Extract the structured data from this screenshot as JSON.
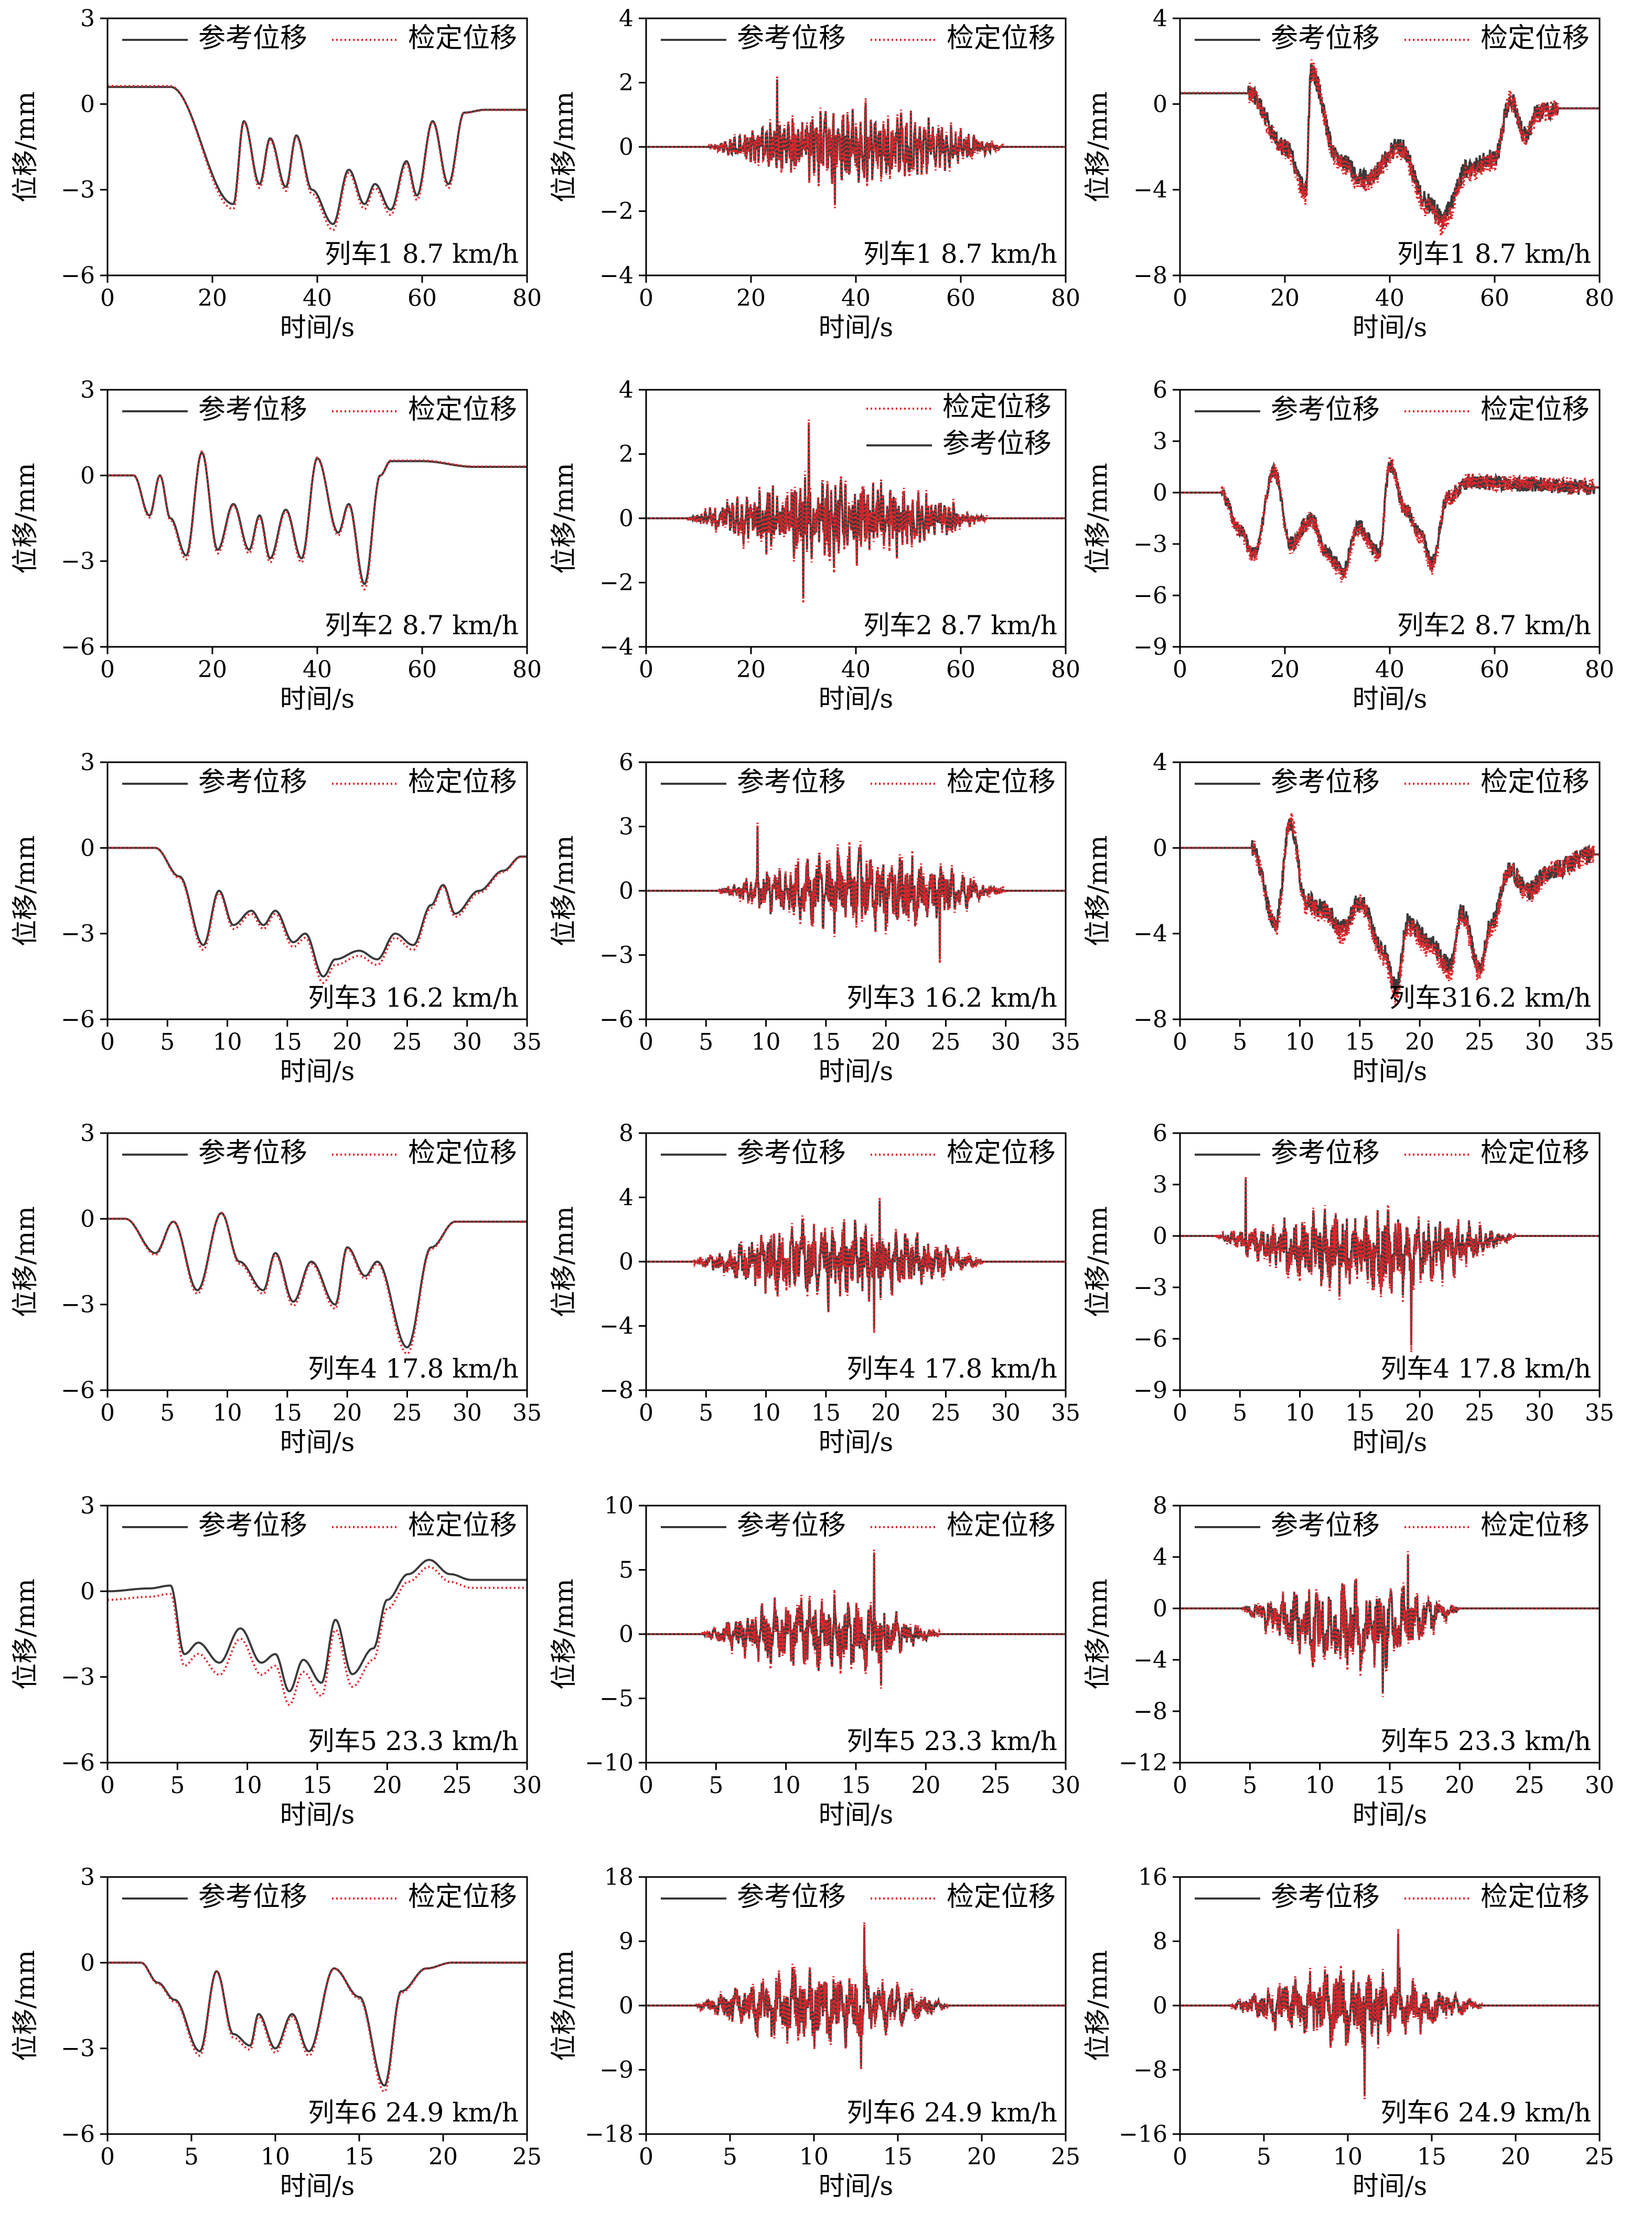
{
  "figure": {
    "xlabel": "时间/s",
    "ylabel": "位移/mm",
    "colors": {
      "reference": "#3a3a3a",
      "calibrated": "#e0262b",
      "axis": "#000000"
    },
    "labels": {
      "reference": "参考位移",
      "calibrated": "检定位移"
    }
  },
  "chart_data": [
    {
      "type": "line",
      "row": 1,
      "col": 1,
      "annotation": "列车1 8.7 km/h",
      "xlim": [
        0,
        80
      ],
      "xticks": [
        0,
        20,
        40,
        60,
        80
      ],
      "ylim": [
        -6,
        3
      ],
      "yticks": [
        -6,
        -3,
        0,
        3
      ],
      "legend": "top",
      "legend_order": [
        "参考位移",
        "检定位移"
      ],
      "style": "smooth",
      "events": [
        [
          12,
          0.6
        ],
        [
          24,
          -3.5
        ],
        [
          26,
          -0.6
        ],
        [
          29,
          -2.8
        ],
        [
          31,
          -1.2
        ],
        [
          34,
          -2.9
        ],
        [
          36,
          -1.1
        ],
        [
          39,
          -3.0
        ],
        [
          43,
          -4.2
        ],
        [
          46,
          -2.3
        ],
        [
          49,
          -3.5
        ],
        [
          51,
          -2.8
        ],
        [
          54,
          -3.7
        ],
        [
          57,
          -2.0
        ],
        [
          59,
          -3.2
        ],
        [
          62,
          -0.6
        ],
        [
          65,
          -2.8
        ],
        [
          68,
          -0.3
        ],
        [
          72,
          -0.2
        ]
      ]
    },
    {
      "type": "line",
      "row": 1,
      "col": 2,
      "annotation": "列车1 8.7 km/h",
      "xlim": [
        0,
        80
      ],
      "xticks": [
        0,
        20,
        40,
        60,
        80
      ],
      "ylim": [
        -4,
        4
      ],
      "yticks": [
        -4,
        -2,
        0,
        2,
        4
      ],
      "legend": "top",
      "legend_order": [
        "参考位移",
        "检定位移"
      ],
      "style": "oscillation",
      "span": [
        12,
        68
      ],
      "peak": [
        25,
        2.1
      ],
      "trough": [
        36,
        -1.8
      ],
      "amp": 1.2
    },
    {
      "type": "line",
      "row": 1,
      "col": 3,
      "annotation": "列车1 8.7 km/h",
      "xlim": [
        0,
        80
      ],
      "xticks": [
        0,
        20,
        40,
        60,
        80
      ],
      "ylim": [
        -8,
        4
      ],
      "yticks": [
        -8,
        -4,
        0,
        4
      ],
      "legend": "top",
      "legend_order": [
        "参考位移",
        "检定位移"
      ],
      "style": "noisy",
      "events": [
        [
          13,
          0.5
        ],
        [
          20,
          -2.0
        ],
        [
          24,
          -4.0
        ],
        [
          25,
          1.5
        ],
        [
          30,
          -2.5
        ],
        [
          35,
          -3.5
        ],
        [
          42,
          -2.0
        ],
        [
          47,
          -4.5
        ],
        [
          50,
          -5.3
        ],
        [
          55,
          -3.0
        ],
        [
          60,
          -2.5
        ],
        [
          63,
          0.2
        ],
        [
          66,
          -1.5
        ],
        [
          68,
          -0.4
        ],
        [
          72,
          -0.2
        ]
      ]
    },
    {
      "type": "line",
      "row": 2,
      "col": 1,
      "annotation": "列车2 8.7 km/h",
      "xlim": [
        0,
        80
      ],
      "xticks": [
        0,
        20,
        40,
        60,
        80
      ],
      "ylim": [
        -6,
        3
      ],
      "yticks": [
        -6,
        -3,
        0,
        3
      ],
      "legend": "top",
      "legend_order": [
        "参考位移",
        "检定位移"
      ],
      "style": "smooth",
      "events": [
        [
          5,
          0
        ],
        [
          8,
          -1.4
        ],
        [
          10,
          0
        ],
        [
          12,
          -1.5
        ],
        [
          15,
          -2.8
        ],
        [
          18,
          0.8
        ],
        [
          21,
          -2.6
        ],
        [
          24,
          -1.0
        ],
        [
          27,
          -2.6
        ],
        [
          29,
          -1.4
        ],
        [
          31,
          -2.9
        ],
        [
          34,
          -1.2
        ],
        [
          37,
          -2.9
        ],
        [
          40,
          0.6
        ],
        [
          44,
          -2.0
        ],
        [
          46,
          -1.0
        ],
        [
          49,
          -3.8
        ],
        [
          52,
          0.0
        ],
        [
          54,
          0.5
        ],
        [
          60,
          0.5
        ],
        [
          70,
          0.3
        ],
        [
          78,
          0.3
        ]
      ]
    },
    {
      "type": "line",
      "row": 2,
      "col": 2,
      "annotation": "列车2 8.7 km/h",
      "xlim": [
        0,
        80
      ],
      "xticks": [
        0,
        20,
        40,
        60,
        80
      ],
      "ylim": [
        -4,
        4
      ],
      "yticks": [
        -4,
        -2,
        0,
        2,
        4
      ],
      "legend": "top",
      "legend_order": [
        "检定位移",
        "参考位移"
      ],
      "legend_stacked": true,
      "style": "oscillation",
      "span": [
        8,
        65
      ],
      "peak": [
        31,
        2.9
      ],
      "trough": [
        30,
        -2.5
      ],
      "amp": 1.3
    },
    {
      "type": "line",
      "row": 2,
      "col": 3,
      "annotation": "列车2 8.7 km/h",
      "xlim": [
        0,
        80
      ],
      "xticks": [
        0,
        20,
        40,
        60,
        80
      ],
      "ylim": [
        -9,
        6
      ],
      "yticks": [
        -9,
        -6,
        -3,
        0,
        3,
        6
      ],
      "legend": "top",
      "legend_order": [
        "参考位移",
        "检定位移"
      ],
      "style": "noisy",
      "events": [
        [
          8,
          0
        ],
        [
          11,
          -2.0
        ],
        [
          14,
          -3.5
        ],
        [
          18,
          1.2
        ],
        [
          21,
          -3.0
        ],
        [
          25,
          -1.5
        ],
        [
          28,
          -3.5
        ],
        [
          31,
          -4.5
        ],
        [
          34,
          -2.0
        ],
        [
          38,
          -3.5
        ],
        [
          40,
          1.6
        ],
        [
          43,
          -1.0
        ],
        [
          46,
          -2.5
        ],
        [
          48,
          -4.1
        ],
        [
          51,
          -0.3
        ],
        [
          55,
          0.6
        ],
        [
          65,
          0.5
        ],
        [
          79,
          0.3
        ]
      ]
    },
    {
      "type": "line",
      "row": 3,
      "col": 1,
      "annotation": "列车3 16.2 km/h",
      "xlim": [
        0,
        35
      ],
      "xticks": [
        0,
        5,
        10,
        15,
        20,
        25,
        30,
        35
      ],
      "ylim": [
        -6,
        3
      ],
      "yticks": [
        -6,
        -3,
        0,
        3
      ],
      "legend": "top",
      "legend_order": [
        "参考位移",
        "检定位移"
      ],
      "style": "smooth",
      "events": [
        [
          4,
          0
        ],
        [
          6,
          -1.0
        ],
        [
          8,
          -3.4
        ],
        [
          9.3,
          -1.5
        ],
        [
          10.5,
          -2.7
        ],
        [
          12,
          -2.2
        ],
        [
          13,
          -2.7
        ],
        [
          14,
          -2.2
        ],
        [
          15.5,
          -3.3
        ],
        [
          16.5,
          -3.0
        ],
        [
          18,
          -4.5
        ],
        [
          19,
          -3.9
        ],
        [
          21,
          -3.6
        ],
        [
          22.5,
          -3.9
        ],
        [
          24,
          -3.0
        ],
        [
          25.5,
          -3.4
        ],
        [
          27,
          -2.0
        ],
        [
          28,
          -1.3
        ],
        [
          29,
          -2.3
        ],
        [
          31,
          -1.5
        ],
        [
          33,
          -0.8
        ],
        [
          34.5,
          -0.3
        ]
      ]
    },
    {
      "type": "line",
      "row": 3,
      "col": 2,
      "annotation": "列车3 16.2 km/h",
      "xlim": [
        0,
        35
      ],
      "xticks": [
        0,
        5,
        10,
        15,
        20,
        25,
        30,
        35
      ],
      "ylim": [
        -6,
        6
      ],
      "yticks": [
        -6,
        -3,
        0,
        3,
        6
      ],
      "legend": "top",
      "legend_order": [
        "参考位移",
        "检定位移"
      ],
      "style": "oscillation",
      "span": [
        6,
        30
      ],
      "peak": [
        9.3,
        3.0
      ],
      "trough": [
        24.5,
        -3.2
      ],
      "amp": 1.9
    },
    {
      "type": "line",
      "row": 3,
      "col": 3,
      "annotation": "列车316.2 km/h",
      "xlim": [
        0,
        35
      ],
      "xticks": [
        0,
        5,
        10,
        15,
        20,
        25,
        30,
        35
      ],
      "ylim": [
        -8,
        4
      ],
      "yticks": [
        -8,
        -4,
        0,
        4
      ],
      "legend": "top",
      "legend_order": [
        "参考位移",
        "检定位移"
      ],
      "style": "noisy",
      "events": [
        [
          6,
          0
        ],
        [
          8,
          -3.5
        ],
        [
          9.2,
          1.2
        ],
        [
          10.5,
          -2.5
        ],
        [
          12,
          -2.8
        ],
        [
          13.5,
          -3.8
        ],
        [
          15,
          -2.5
        ],
        [
          17,
          -4.8
        ],
        [
          18,
          -6.5
        ],
        [
          19,
          -3.5
        ],
        [
          21,
          -4.5
        ],
        [
          22.5,
          -5.5
        ],
        [
          23.5,
          -3.0
        ],
        [
          25,
          -5.5
        ],
        [
          26,
          -3.5
        ],
        [
          27.5,
          -1.0
        ],
        [
          29,
          -2.0
        ],
        [
          31,
          -1.0
        ],
        [
          34.5,
          -0.3
        ]
      ]
    },
    {
      "type": "line",
      "row": 4,
      "col": 1,
      "annotation": "列车4 17.8 km/h",
      "xlim": [
        0,
        35
      ],
      "xticks": [
        0,
        5,
        10,
        15,
        20,
        25,
        30,
        35
      ],
      "ylim": [
        -6,
        3
      ],
      "yticks": [
        -6,
        -3,
        0,
        3
      ],
      "legend": "top",
      "legend_order": [
        "参考位移",
        "检定位移"
      ],
      "style": "smooth",
      "events": [
        [
          1.5,
          0
        ],
        [
          4,
          -1.2
        ],
        [
          5.5,
          -0.1
        ],
        [
          7.5,
          -2.5
        ],
        [
          9.5,
          0.2
        ],
        [
          11,
          -1.5
        ],
        [
          13,
          -2.5
        ],
        [
          14,
          -1.2
        ],
        [
          15.5,
          -2.9
        ],
        [
          17,
          -1.5
        ],
        [
          19,
          -3.0
        ],
        [
          20,
          -1.0
        ],
        [
          21.5,
          -2.0
        ],
        [
          22.5,
          -1.5
        ],
        [
          25,
          -4.5
        ],
        [
          27,
          -1.0
        ],
        [
          29,
          -0.1
        ],
        [
          34.5,
          -0.1
        ]
      ]
    },
    {
      "type": "line",
      "row": 4,
      "col": 2,
      "annotation": "列车4 17.8 km/h",
      "xlim": [
        0,
        35
      ],
      "xticks": [
        0,
        5,
        10,
        15,
        20,
        25,
        30,
        35
      ],
      "ylim": [
        -8,
        8
      ],
      "yticks": [
        -8,
        -4,
        0,
        4,
        8
      ],
      "legend": "top",
      "legend_order": [
        "参考位移",
        "检定位移"
      ],
      "style": "oscillation",
      "span": [
        4,
        28
      ],
      "peak": [
        19.5,
        3.8
      ],
      "trough": [
        19.0,
        -4.2
      ],
      "amp": 2.6
    },
    {
      "type": "line",
      "row": 4,
      "col": 3,
      "annotation": "列车4 17.8 km/h",
      "xlim": [
        0,
        35
      ],
      "xticks": [
        0,
        5,
        10,
        15,
        20,
        25,
        30,
        35
      ],
      "ylim": [
        -9,
        6
      ],
      "yticks": [
        -9,
        -6,
        -3,
        0,
        3,
        6
      ],
      "legend": "top",
      "legend_order": [
        "参考位移",
        "检定位移"
      ],
      "style": "oscillation",
      "span": [
        3,
        28
      ],
      "peak": [
        5.5,
        3.3
      ],
      "trough": [
        19.3,
        -6.4
      ],
      "amp": 2.5,
      "bias": -1.0
    },
    {
      "type": "line",
      "row": 5,
      "col": 1,
      "annotation": "列车5 23.3 km/h",
      "xlim": [
        0,
        30
      ],
      "xticks": [
        0,
        5,
        10,
        15,
        20,
        25,
        30
      ],
      "ylim": [
        -6,
        3
      ],
      "yticks": [
        -6,
        -3,
        0,
        3
      ],
      "legend": "top",
      "legend_order": [
        "参考位移",
        "检定位移"
      ],
      "style": "smooth",
      "offset_cal": -0.3,
      "events": [
        [
          0,
          0
        ],
        [
          3,
          0.1
        ],
        [
          4.5,
          0.2
        ],
        [
          5.5,
          -2.2
        ],
        [
          6.5,
          -1.8
        ],
        [
          8,
          -2.5
        ],
        [
          9.5,
          -1.3
        ],
        [
          11,
          -2.5
        ],
        [
          12,
          -2.2
        ],
        [
          13,
          -3.5
        ],
        [
          14,
          -2.4
        ],
        [
          15.3,
          -3.2
        ],
        [
          16.3,
          -1.0
        ],
        [
          17.5,
          -2.9
        ],
        [
          19,
          -2.0
        ],
        [
          20,
          -0.3
        ],
        [
          21.5,
          0.6
        ],
        [
          23,
          1.1
        ],
        [
          24.5,
          0.6
        ],
        [
          26,
          0.4
        ],
        [
          29.5,
          0.4
        ]
      ]
    },
    {
      "type": "line",
      "row": 5,
      "col": 2,
      "annotation": "列车5 23.3 km/h",
      "xlim": [
        0,
        30
      ],
      "xticks": [
        0,
        5,
        10,
        15,
        20,
        25,
        30
      ],
      "ylim": [
        -10,
        10
      ],
      "yticks": [
        -10,
        -5,
        0,
        5,
        10
      ],
      "legend": "top",
      "legend_order": [
        "参考位移",
        "检定位移"
      ],
      "style": "oscillation",
      "span": [
        4,
        21
      ],
      "peak": [
        16.3,
        6.2
      ],
      "trough": [
        16.8,
        -4.0
      ],
      "amp": 3.0
    },
    {
      "type": "line",
      "row": 5,
      "col": 3,
      "annotation": "列车5 23.3 km/h",
      "xlim": [
        0,
        30
      ],
      "xticks": [
        0,
        5,
        10,
        15,
        20,
        25,
        30
      ],
      "ylim": [
        -12,
        8
      ],
      "yticks": [
        -12,
        -8,
        -4,
        0,
        4,
        8
      ],
      "legend": "top",
      "legend_order": [
        "参考位移",
        "检定位移"
      ],
      "style": "oscillation",
      "span": [
        4.5,
        20
      ],
      "peak": [
        16.3,
        4.2
      ],
      "trough": [
        14.5,
        -6.5
      ],
      "amp": 3.4,
      "bias": -1.5
    },
    {
      "type": "line",
      "row": 6,
      "col": 1,
      "annotation": "列车6 24.9 km/h",
      "xlim": [
        0,
        25
      ],
      "xticks": [
        0,
        5,
        10,
        15,
        20,
        25
      ],
      "ylim": [
        -6,
        3
      ],
      "yticks": [
        -6,
        -3,
        0,
        3
      ],
      "legend": "top",
      "legend_order": [
        "参考位移",
        "检定位移"
      ],
      "style": "smooth",
      "events": [
        [
          0,
          0
        ],
        [
          2,
          0
        ],
        [
          3,
          -0.7
        ],
        [
          4,
          -1.3
        ],
        [
          5.5,
          -3.1
        ],
        [
          6.5,
          -0.3
        ],
        [
          7.5,
          -2.5
        ],
        [
          8.5,
          -2.9
        ],
        [
          9,
          -1.8
        ],
        [
          10,
          -3.0
        ],
        [
          11,
          -1.8
        ],
        [
          12,
          -3.1
        ],
        [
          13.5,
          -0.2
        ],
        [
          15,
          -1.2
        ],
        [
          16.5,
          -4.3
        ],
        [
          17.5,
          -1.0
        ],
        [
          19,
          -0.2
        ],
        [
          20.5,
          0
        ],
        [
          25,
          0
        ]
      ]
    },
    {
      "type": "line",
      "row": 6,
      "col": 2,
      "annotation": "列车6 24.9 km/h",
      "xlim": [
        0,
        25
      ],
      "xticks": [
        0,
        5,
        10,
        15,
        20,
        25
      ],
      "ylim": [
        -18,
        18
      ],
      "yticks": [
        -18,
        -9,
        0,
        9,
        18
      ],
      "legend": "top",
      "legend_order": [
        "参考位移",
        "检定位移"
      ],
      "style": "oscillation",
      "span": [
        3,
        18
      ],
      "peak": [
        13.0,
        11.0
      ],
      "trough": [
        12.8,
        -8.5
      ],
      "amp": 5.5
    },
    {
      "type": "line",
      "row": 6,
      "col": 3,
      "annotation": "列车6 24.9 km/h",
      "xlim": [
        0,
        25
      ],
      "xticks": [
        0,
        5,
        10,
        15,
        20,
        25
      ],
      "ylim": [
        -16,
        16
      ],
      "yticks": [
        -16,
        -8,
        0,
        8,
        16
      ],
      "legend": "top",
      "legend_order": [
        "参考位移",
        "检定位移"
      ],
      "style": "oscillation",
      "span": [
        3,
        18
      ],
      "peak": [
        13.0,
        9.0
      ],
      "trough": [
        11.0,
        -11.0
      ],
      "amp": 5.0
    }
  ]
}
